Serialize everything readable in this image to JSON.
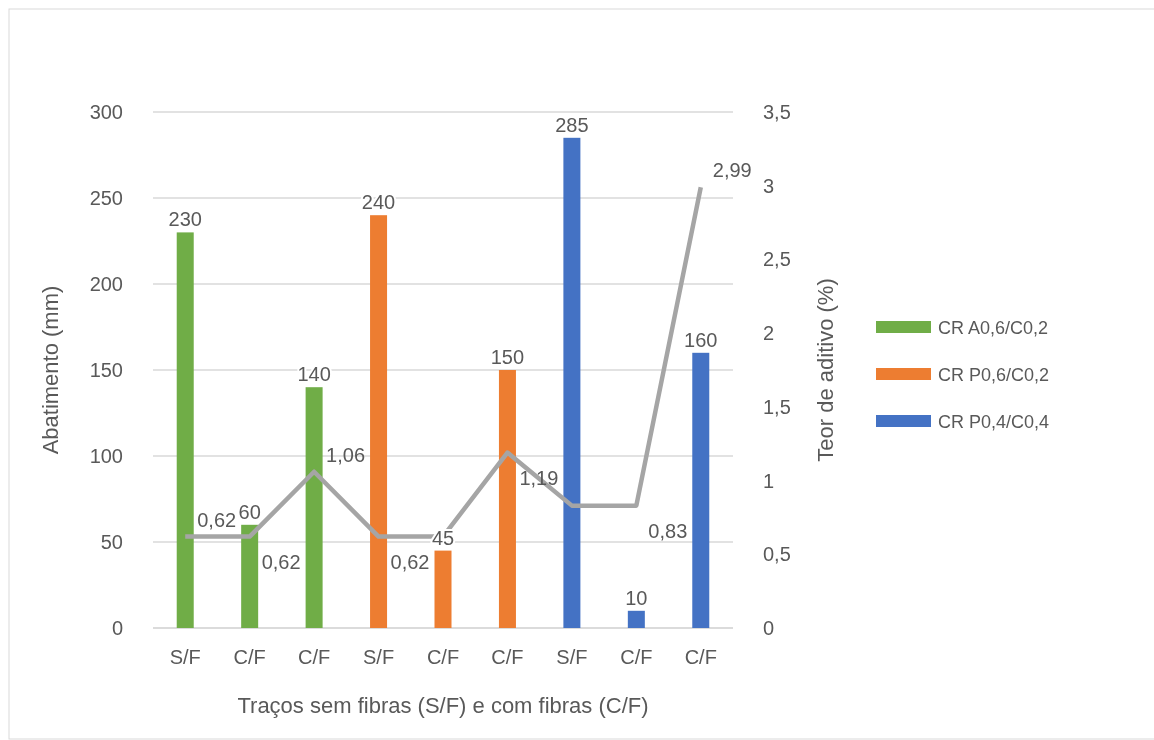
{
  "chart_data": {
    "type": "bar",
    "xlabel": "Traços sem fibras (S/F) e com fibras (C/F)",
    "ylabel": "Abatimento (mm)",
    "y2label": "Teor de aditivo (%)",
    "categories": [
      "S/F",
      "C/F",
      "C/F",
      "S/F",
      "C/F",
      "C/F",
      "S/F",
      "C/F",
      "C/F"
    ],
    "series": [
      {
        "name": "CR A0,6/C0,2",
        "color": "#70ad47",
        "values": [
          230,
          60,
          140,
          null,
          null,
          null,
          null,
          null,
          null
        ]
      },
      {
        "name": "CR P0,6/C0,2",
        "color": "#ed7d31",
        "values": [
          null,
          null,
          null,
          240,
          45,
          150,
          null,
          null,
          null
        ]
      },
      {
        "name": "CR P0,4/C0,4",
        "color": "#4472c4",
        "values": [
          null,
          null,
          null,
          null,
          null,
          null,
          285,
          10,
          160
        ]
      },
      {
        "type": "line",
        "axis": "y2",
        "color": "#a5a5a5",
        "values": [
          0.62,
          0.62,
          1.06,
          0.62,
          0.62,
          1.19,
          0.83,
          0.83,
          2.99
        ],
        "value_labels": [
          "0,62",
          "0,62",
          "1,06",
          "0,62",
          null,
          "1,19",
          null,
          "0,83",
          "2,99"
        ]
      }
    ],
    "data_labels": true,
    "ylim": [
      0,
      300
    ],
    "yticks": [
      0,
      50,
      100,
      150,
      200,
      250,
      300
    ],
    "y2lim": [
      0,
      3.5
    ],
    "y2ticks": [
      0,
      {
        "value": 0.5,
        "label": "0,5"
      },
      1,
      {
        "value": 1.5,
        "label": "1,5"
      },
      2,
      {
        "value": 2.5,
        "label": "2,5"
      },
      3,
      {
        "value": 3.5,
        "label": "3,5"
      }
    ],
    "grid": "y",
    "legend": "right",
    "marker": "none",
    "line_style": "solid"
  }
}
